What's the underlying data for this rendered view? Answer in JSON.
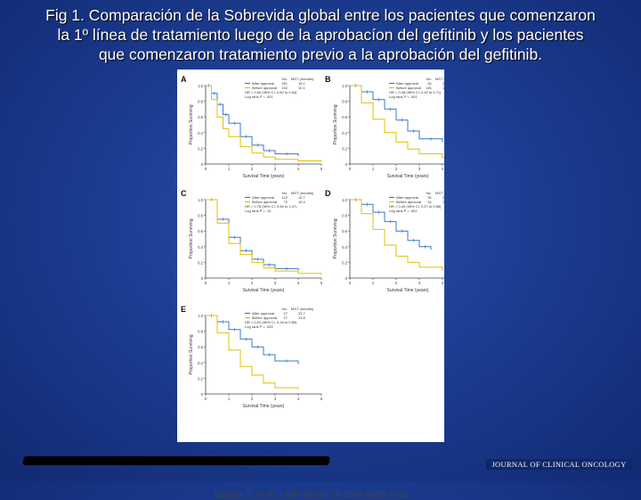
{
  "slide": {
    "title_lines": [
      "Fig 1. Comparación de la Sobrevida global entre los pacientes que comenzaron",
      "la 1º línea de tratamiento  luego de la  aprobacíon del  gefitinib y los pacientes",
      "que comenzaron tratamiento previo a la aprobación del   gefitinib."
    ],
    "citation": "Takano, T. et al. J Clin Oncol; 26:5589-5595 2008",
    "journal": "JOURNAL OF CLINICAL ONCOLOGY"
  },
  "colors": {
    "after_series": "#3a78c8",
    "before_series": "#e0c000"
  },
  "chart_data": [
    {
      "type": "line",
      "panel": "A",
      "xlabel": "Survival Time (years)",
      "ylabel": "Proportion Surviving",
      "xlim": [
        0,
        5
      ],
      "ylim": [
        0,
        1.0
      ],
      "xticks": [
        0,
        1,
        2,
        3,
        4,
        5
      ],
      "yticks": [
        0,
        0.2,
        0.4,
        0.6,
        0.8,
        1.0
      ],
      "legend_header": [
        "No.",
        "MST (months)"
      ],
      "series": [
        {
          "name": "After approval",
          "n": "251",
          "mst": "16.1",
          "x": [
            0,
            0.25,
            0.5,
            0.75,
            1.0,
            1.5,
            2.0,
            2.5,
            3.0,
            4.0
          ],
          "y": [
            1.0,
            0.9,
            0.76,
            0.63,
            0.52,
            0.35,
            0.24,
            0.17,
            0.13,
            0.1
          ]
        },
        {
          "name": "Before approval",
          "n": "152",
          "mst": "10.1",
          "x": [
            0,
            0.25,
            0.5,
            0.75,
            1.0,
            1.5,
            2.0,
            2.5,
            3.0,
            4.0,
            5.0
          ],
          "y": [
            1.0,
            0.82,
            0.6,
            0.45,
            0.35,
            0.22,
            0.14,
            0.09,
            0.06,
            0.04,
            0.03
          ]
        }
      ],
      "stats": [
        "HR = 0.65 (95% CI, 0.52 to 0.84)",
        "Log rank P < .001"
      ]
    },
    {
      "type": "line",
      "panel": "B",
      "xlabel": "Survival Time (years)",
      "ylabel": "Proportion Surviving",
      "xlim": [
        0,
        5
      ],
      "ylim": [
        0,
        1.0
      ],
      "xticks": [
        0,
        1,
        2,
        3,
        4,
        5
      ],
      "yticks": [
        0,
        0.2,
        0.4,
        0.6,
        0.8,
        1.0
      ],
      "legend_header": [
        "No.",
        "MST (months)"
      ],
      "series": [
        {
          "name": "After approval",
          "n": "51",
          "mst": "27.2",
          "x": [
            0,
            0.5,
            1.0,
            1.5,
            2.0,
            2.5,
            3.0,
            4.0
          ],
          "y": [
            1.0,
            0.92,
            0.82,
            0.7,
            0.56,
            0.42,
            0.32,
            0.28
          ]
        },
        {
          "name": "Before approval",
          "n": "181",
          "mst": "13.6",
          "x": [
            0,
            0.5,
            1.0,
            1.5,
            2.0,
            2.5,
            3.0,
            4.0,
            5.0
          ],
          "y": [
            1.0,
            0.78,
            0.57,
            0.4,
            0.28,
            0.19,
            0.13,
            0.08,
            0.05
          ]
        }
      ],
      "stats": [
        "HR = 0.48 (95% CI, 0.32 to 0.71)",
        "Log rank P < .001"
      ]
    },
    {
      "type": "line",
      "panel": "C",
      "xlabel": "Survival Time (years)",
      "ylabel": "Proportion Surviving",
      "xlim": [
        0,
        5
      ],
      "ylim": [
        0,
        1.0
      ],
      "xticks": [
        0,
        1,
        2,
        3,
        4,
        5
      ],
      "yticks": [
        0,
        0.2,
        0.4,
        0.6,
        0.8,
        1.0
      ],
      "legend_header": [
        "No.",
        "MST (months)"
      ],
      "series": [
        {
          "name": "After approval",
          "n": "122",
          "mst": "12.7",
          "x": [
            0,
            0.5,
            1.0,
            1.5,
            2.0,
            2.5,
            3.0,
            4.0
          ],
          "y": [
            1.0,
            0.75,
            0.52,
            0.35,
            0.24,
            0.17,
            0.12,
            0.1
          ]
        },
        {
          "name": "Before approval",
          "n": "72",
          "mst": "10.4",
          "x": [
            0,
            0.5,
            1.0,
            1.5,
            2.0,
            2.5,
            3.0,
            4.0,
            5.0
          ],
          "y": [
            1.0,
            0.7,
            0.44,
            0.3,
            0.2,
            0.13,
            0.09,
            0.06,
            0.04
          ]
        }
      ],
      "stats": [
        "HR = 0.78 (95% CI, 0.56 to 1.07)",
        "Log rank P = .13"
      ]
    },
    {
      "type": "line",
      "panel": "D",
      "xlabel": "Survival Time (years)",
      "ylabel": "Proportion Surviving",
      "xlim": [
        0,
        5
      ],
      "ylim": [
        0,
        1.0
      ],
      "xticks": [
        0,
        1,
        2,
        3,
        4,
        5
      ],
      "yticks": [
        0,
        0.2,
        0.4,
        0.6,
        0.8,
        1.0
      ],
      "legend_header": [
        "No.",
        "MST (months)"
      ],
      "series": [
        {
          "name": "After approval",
          "n": "51",
          "mst": "29.7",
          "x": [
            0,
            0.5,
            1.0,
            1.5,
            2.0,
            2.5,
            3.0,
            3.5
          ],
          "y": [
            1.0,
            0.94,
            0.84,
            0.72,
            0.6,
            0.48,
            0.4,
            0.36
          ]
        },
        {
          "name": "Before approval",
          "n": "51",
          "mst": "15.3",
          "x": [
            0,
            0.5,
            1.0,
            1.5,
            2.0,
            2.5,
            3.0,
            4.0
          ],
          "y": [
            1.0,
            0.82,
            0.62,
            0.42,
            0.28,
            0.2,
            0.14,
            0.1
          ]
        }
      ],
      "stats": [
        "HR = 0.49 (95% CI, 0.27 to 0.86)",
        "Log rank P = .002"
      ]
    },
    {
      "type": "line",
      "panel": "E",
      "xlabel": "Survival Time (years)",
      "ylabel": "Proportion Surviving",
      "xlim": [
        0,
        5
      ],
      "ylim": [
        0,
        1.0
      ],
      "xticks": [
        0,
        1,
        2,
        3,
        4,
        5
      ],
      "yticks": [
        0,
        0.2,
        0.4,
        0.6,
        0.8,
        1.0
      ],
      "legend_header": [
        "No.",
        "MST (months)"
      ],
      "series": [
        {
          "name": "After approval",
          "n": "27",
          "mst": "31.7",
          "x": [
            0,
            0.5,
            1.0,
            1.5,
            2.0,
            2.5,
            3.0,
            4.0
          ],
          "y": [
            1.0,
            0.92,
            0.82,
            0.7,
            0.6,
            0.5,
            0.42,
            0.38
          ]
        },
        {
          "name": "Before approval",
          "n": "27",
          "mst": "13.8",
          "x": [
            0,
            0.5,
            1.0,
            1.5,
            2.0,
            2.5,
            3.0,
            4.0
          ],
          "y": [
            1.0,
            0.78,
            0.56,
            0.35,
            0.24,
            0.14,
            0.08,
            0.06
          ]
        }
      ],
      "stats": [
        "HR = 0.51 (95% CI, 0.28 to 0.80)",
        "Log rank P = .025"
      ]
    }
  ]
}
